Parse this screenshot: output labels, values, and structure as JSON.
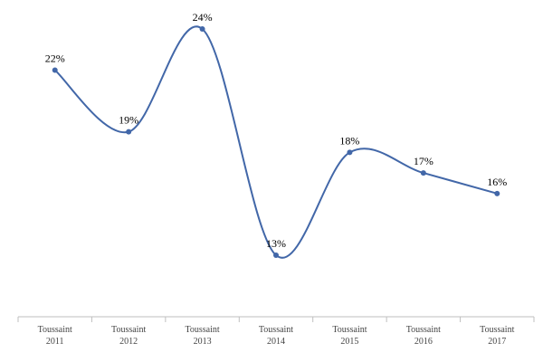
{
  "chart_data": {
    "type": "line",
    "categories": [
      "Toussaint 2011",
      "Toussaint 2012",
      "Toussaint 2013",
      "Toussaint 2014",
      "Toussaint 2015",
      "Toussaint 2016",
      "Toussaint 2017"
    ],
    "series": [
      {
        "color": "#4267a8",
        "values": [
          22,
          19,
          24,
          13,
          18,
          17,
          16
        ],
        "value_labels": [
          "22%",
          "19%",
          "24%",
          "13%",
          "18%",
          "17%",
          "16%"
        ]
      }
    ],
    "smooth": true
  }
}
